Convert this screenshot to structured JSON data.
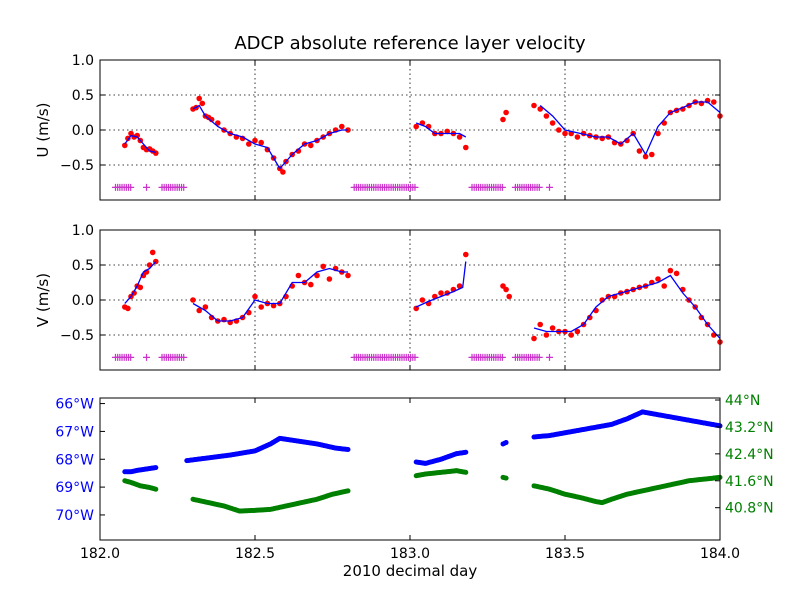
{
  "chart_data": [
    {
      "type": "line",
      "title": "ADCP absolute reference layer velocity",
      "xlabel": "",
      "ylabel": "U (m/s)",
      "xlim": [
        182.0,
        184.0
      ],
      "ylim": [
        -1.0,
        1.0
      ],
      "yticks": [
        {
          "value": 1.0,
          "label": "1.0"
        },
        {
          "value": 0.5,
          "label": "0.5"
        },
        {
          "value": 0.0,
          "label": "0.0"
        },
        {
          "value": -0.5,
          "label": "−0.5"
        }
      ],
      "grid": true,
      "colors": {
        "line": "#0000ff",
        "points": "#ff0000",
        "flags": "#cc33cc"
      },
      "series": [
        {
          "role": "smoothed",
          "segments": [
            {
              "x": [
                182.08,
                182.1,
                182.12,
                182.14,
                182.16,
                182.18
              ],
              "y": [
                -0.2,
                -0.08,
                -0.1,
                -0.2,
                -0.3,
                -0.32
              ]
            },
            {
              "x": [
                182.3,
                182.32,
                182.34,
                182.38,
                182.42,
                182.46,
                182.5,
                182.54,
                182.58,
                182.62,
                182.66,
                182.7,
                182.74,
                182.78,
                182.8
              ],
              "y": [
                0.3,
                0.35,
                0.2,
                0.05,
                -0.05,
                -0.1,
                -0.2,
                -0.25,
                -0.55,
                -0.35,
                -0.2,
                -0.15,
                -0.05,
                0.0,
                0.0
              ]
            },
            {
              "x": [
                183.02,
                183.05,
                183.08,
                183.12,
                183.16,
                183.18
              ],
              "y": [
                0.1,
                0.05,
                -0.05,
                -0.05,
                -0.05,
                -0.1
              ]
            },
            {
              "x": [
                183.42,
                183.46,
                183.5,
                183.55,
                183.6,
                183.64,
                183.68,
                183.72,
                183.76,
                183.8,
                183.84,
                183.88,
                183.92,
                183.96,
                184.0
              ],
              "y": [
                0.35,
                0.2,
                0.0,
                -0.05,
                -0.1,
                -0.1,
                -0.2,
                -0.05,
                -0.35,
                0.05,
                0.25,
                0.32,
                0.4,
                0.4,
                0.25
              ]
            }
          ]
        },
        {
          "role": "raw",
          "points_x": [
            182.08,
            182.09,
            182.1,
            182.11,
            182.12,
            182.13,
            182.14,
            182.15,
            182.16,
            182.17,
            182.18,
            182.3,
            182.31,
            182.32,
            182.33,
            182.34,
            182.35,
            182.36,
            182.38,
            182.4,
            182.42,
            182.44,
            182.46,
            182.48,
            182.5,
            182.52,
            182.54,
            182.56,
            182.58,
            182.59,
            182.6,
            182.62,
            182.64,
            182.66,
            182.68,
            182.7,
            182.72,
            182.74,
            182.76,
            182.78,
            182.8,
            183.02,
            183.04,
            183.06,
            183.08,
            183.1,
            183.12,
            183.14,
            183.16,
            183.18,
            183.3,
            183.31,
            183.4,
            183.42,
            183.44,
            183.46,
            183.48,
            183.5,
            183.52,
            183.54,
            183.56,
            183.58,
            183.6,
            183.62,
            183.64,
            183.66,
            183.68,
            183.7,
            183.72,
            183.74,
            183.76,
            183.78,
            183.8,
            183.82,
            183.84,
            183.86,
            183.88,
            183.9,
            183.92,
            183.94,
            183.96,
            183.98,
            184.0
          ],
          "points_y": [
            -0.22,
            -0.12,
            -0.05,
            -0.1,
            -0.08,
            -0.15,
            -0.25,
            -0.28,
            -0.27,
            -0.3,
            -0.33,
            0.3,
            0.32,
            0.45,
            0.38,
            0.2,
            0.18,
            0.15,
            0.1,
            0.0,
            -0.05,
            -0.1,
            -0.12,
            -0.2,
            -0.15,
            -0.18,
            -0.28,
            -0.4,
            -0.55,
            -0.6,
            -0.45,
            -0.35,
            -0.3,
            -0.2,
            -0.22,
            -0.15,
            -0.1,
            -0.05,
            0.0,
            0.05,
            0.0,
            0.05,
            0.1,
            0.05,
            -0.05,
            -0.05,
            -0.02,
            -0.05,
            -0.1,
            -0.25,
            0.15,
            0.25,
            0.35,
            0.3,
            0.2,
            0.1,
            0.0,
            -0.05,
            -0.05,
            -0.1,
            -0.05,
            -0.08,
            -0.1,
            -0.12,
            -0.1,
            -0.18,
            -0.2,
            -0.15,
            -0.05,
            -0.3,
            -0.38,
            -0.35,
            -0.05,
            0.1,
            0.25,
            0.28,
            0.3,
            0.35,
            0.4,
            0.38,
            0.42,
            0.4,
            0.2
          ]
        },
        {
          "role": "flags",
          "y": -0.82,
          "x_ranges": [
            [
              182.05,
              182.1
            ],
            [
              182.2,
              182.27
            ],
            [
              182.82,
              183.02
            ],
            [
              183.2,
              183.3
            ],
            [
              183.34,
              183.42
            ]
          ],
          "x_single": [
            182.15,
            183.45
          ]
        }
      ]
    },
    {
      "type": "line",
      "title": "",
      "xlabel": "",
      "ylabel": "V (m/s)",
      "xlim": [
        182.0,
        184.0
      ],
      "ylim": [
        -1.0,
        1.0
      ],
      "yticks": [
        {
          "value": 1.0,
          "label": "1.0"
        },
        {
          "value": 0.5,
          "label": "0.5"
        },
        {
          "value": 0.0,
          "label": "0.0"
        },
        {
          "value": -0.5,
          "label": "−0.5"
        }
      ],
      "grid": true,
      "colors": {
        "line": "#0000ff",
        "points": "#ff0000",
        "flags": "#cc33cc"
      },
      "series": [
        {
          "role": "smoothed",
          "segments": [
            {
              "x": [
                182.08,
                182.1,
                182.12,
                182.14,
                182.16,
                182.18
              ],
              "y": [
                -0.05,
                0.05,
                0.2,
                0.4,
                0.45,
                0.55
              ]
            },
            {
              "x": [
                182.3,
                182.34,
                182.38,
                182.42,
                182.46,
                182.5,
                182.54,
                182.58,
                182.62,
                182.66,
                182.7,
                182.74,
                182.78,
                182.8
              ],
              "y": [
                -0.05,
                -0.15,
                -0.3,
                -0.3,
                -0.25,
                0.0,
                -0.05,
                -0.05,
                0.25,
                0.25,
                0.4,
                0.45,
                0.4,
                0.4
              ]
            },
            {
              "x": [
                183.02,
                183.06,
                183.1,
                183.14,
                183.17,
                183.18
              ],
              "y": [
                -0.1,
                -0.02,
                0.05,
                0.12,
                0.18,
                0.55
              ]
            },
            {
              "x": [
                183.4,
                183.44,
                183.48,
                183.52,
                183.56,
                183.6,
                183.64,
                183.68,
                183.72,
                183.76,
                183.8,
                183.84,
                183.88,
                183.92,
                183.96,
                184.0
              ],
              "y": [
                -0.4,
                -0.45,
                -0.45,
                -0.45,
                -0.35,
                -0.1,
                0.05,
                0.1,
                0.15,
                0.2,
                0.25,
                0.35,
                0.1,
                -0.1,
                -0.35,
                -0.55
              ]
            }
          ]
        },
        {
          "role": "raw",
          "points_x": [
            182.08,
            182.09,
            182.1,
            182.11,
            182.12,
            182.13,
            182.14,
            182.15,
            182.16,
            182.17,
            182.18,
            182.3,
            182.32,
            182.34,
            182.36,
            182.38,
            182.4,
            182.42,
            182.44,
            182.46,
            182.48,
            182.5,
            182.52,
            182.54,
            182.56,
            182.58,
            182.6,
            182.62,
            182.64,
            182.66,
            182.68,
            182.7,
            182.72,
            182.74,
            182.76,
            182.78,
            182.8,
            183.02,
            183.04,
            183.06,
            183.08,
            183.1,
            183.12,
            183.14,
            183.16,
            183.18,
            183.3,
            183.31,
            183.32,
            183.4,
            183.42,
            183.44,
            183.46,
            183.48,
            183.5,
            183.52,
            183.54,
            183.56,
            183.58,
            183.6,
            183.62,
            183.64,
            183.66,
            183.68,
            183.7,
            183.72,
            183.74,
            183.76,
            183.78,
            183.8,
            183.82,
            183.84,
            183.86,
            183.88,
            183.9,
            183.92,
            183.94,
            183.96,
            183.98,
            184.0
          ],
          "points_y": [
            -0.1,
            -0.12,
            0.05,
            0.1,
            0.2,
            0.18,
            0.35,
            0.4,
            0.5,
            0.68,
            0.55,
            0.0,
            -0.15,
            -0.1,
            -0.25,
            -0.3,
            -0.28,
            -0.32,
            -0.3,
            -0.25,
            -0.18,
            0.05,
            -0.1,
            -0.05,
            -0.08,
            -0.05,
            0.05,
            0.2,
            0.35,
            0.25,
            0.22,
            0.35,
            0.48,
            0.3,
            0.45,
            0.4,
            0.35,
            -0.12,
            0.0,
            -0.05,
            0.05,
            0.1,
            0.1,
            0.15,
            0.2,
            0.65,
            0.2,
            0.15,
            0.05,
            -0.55,
            -0.35,
            -0.5,
            -0.4,
            -0.45,
            -0.45,
            -0.5,
            -0.45,
            -0.35,
            -0.25,
            -0.15,
            0.0,
            0.05,
            0.05,
            0.1,
            0.12,
            0.15,
            0.18,
            0.2,
            0.25,
            0.3,
            0.2,
            0.42,
            0.38,
            0.15,
            0.0,
            -0.1,
            -0.25,
            -0.35,
            -0.5,
            -0.6
          ]
        },
        {
          "role": "flags",
          "y": -0.82,
          "x_ranges": [
            [
              182.05,
              182.1
            ],
            [
              182.2,
              182.27
            ],
            [
              182.82,
              183.02
            ],
            [
              183.2,
              183.3
            ],
            [
              183.34,
              183.42
            ]
          ],
          "x_single": [
            182.15,
            183.45
          ]
        }
      ]
    },
    {
      "type": "scatter",
      "title": "",
      "xlabel": "2010 decimal day",
      "xlim": [
        182.0,
        184.0
      ],
      "xticks": [
        {
          "value": 182.0,
          "label": "182.0"
        },
        {
          "value": 182.5,
          "label": "182.5"
        },
        {
          "value": 183.0,
          "label": "183.0"
        },
        {
          "value": 183.5,
          "label": "183.5"
        },
        {
          "value": 184.0,
          "label": "184.0"
        }
      ],
      "left_axis": {
        "ylim": [
          65.8,
          70.9
        ],
        "inverted": true,
        "color": "#0000ff",
        "ticks": [
          {
            "value": 66,
            "label": "66°W"
          },
          {
            "value": 67,
            "label": "67°W"
          },
          {
            "value": 68,
            "label": "68°W"
          },
          {
            "value": 69,
            "label": "69°W"
          },
          {
            "value": 70,
            "label": "70°W"
          }
        ]
      },
      "right_axis": {
        "ylim": [
          39.84,
          44.06
        ],
        "color": "#008000",
        "ticks": [
          {
            "value": 44.0,
            "label": "44°N"
          },
          {
            "value": 43.2,
            "label": "43.2°N"
          },
          {
            "value": 42.4,
            "label": "42.4°N"
          },
          {
            "value": 41.6,
            "label": "41.6°N"
          },
          {
            "value": 40.8,
            "label": "40.8°N"
          }
        ]
      },
      "series": [
        {
          "axis": "left",
          "segments": [
            {
              "x": [
                182.08,
                182.1,
                182.12,
                182.15,
                182.18
              ],
              "y": [
                68.45,
                68.45,
                68.4,
                68.35,
                68.3
              ]
            },
            {
              "x": [
                182.28,
                182.35,
                182.42,
                182.5,
                182.55,
                182.58,
                182.64,
                182.7,
                182.76,
                182.8
              ],
              "y": [
                68.05,
                67.95,
                67.85,
                67.7,
                67.45,
                67.25,
                67.35,
                67.45,
                67.6,
                67.65
              ]
            },
            {
              "x": [
                183.02,
                183.05,
                183.1,
                183.15,
                183.18
              ],
              "y": [
                68.1,
                68.15,
                68.0,
                67.8,
                67.75
              ]
            },
            {
              "x": [
                183.3,
                183.31
              ],
              "y": [
                67.45,
                67.4
              ]
            },
            {
              "x": [
                183.4,
                183.45,
                183.5,
                183.55,
                183.6,
                183.65,
                183.7,
                183.75,
                183.8,
                183.85,
                183.9,
                183.95,
                184.0
              ],
              "y": [
                67.2,
                67.15,
                67.05,
                66.95,
                66.85,
                66.75,
                66.55,
                66.3,
                66.4,
                66.5,
                66.6,
                66.7,
                66.8
              ]
            }
          ]
        },
        {
          "axis": "right",
          "segments": [
            {
              "x": [
                182.08,
                182.1,
                182.13,
                182.16,
                182.18
              ],
              "y": [
                41.6,
                41.55,
                41.45,
                41.4,
                41.35
              ]
            },
            {
              "x": [
                182.3,
                182.35,
                182.4,
                182.45,
                182.5,
                182.55,
                182.6,
                182.65,
                182.7,
                182.75,
                182.8
              ],
              "y": [
                41.05,
                40.95,
                40.85,
                40.7,
                40.72,
                40.75,
                40.85,
                40.95,
                41.05,
                41.2,
                41.3
              ]
            },
            {
              "x": [
                183.02,
                183.05,
                183.1,
                183.15,
                183.18
              ],
              "y": [
                41.75,
                41.8,
                41.85,
                41.9,
                41.85
              ]
            },
            {
              "x": [
                183.3,
                183.31
              ],
              "y": [
                41.7,
                41.68
              ]
            },
            {
              "x": [
                183.4,
                183.45,
                183.5,
                183.55,
                183.6,
                183.62,
                183.65,
                183.7,
                183.75,
                183.8,
                183.85,
                183.9,
                183.95,
                184.0
              ],
              "y": [
                41.45,
                41.35,
                41.2,
                41.1,
                40.98,
                40.95,
                41.05,
                41.2,
                41.3,
                41.4,
                41.5,
                41.6,
                41.65,
                41.7
              ]
            }
          ]
        }
      ]
    }
  ]
}
